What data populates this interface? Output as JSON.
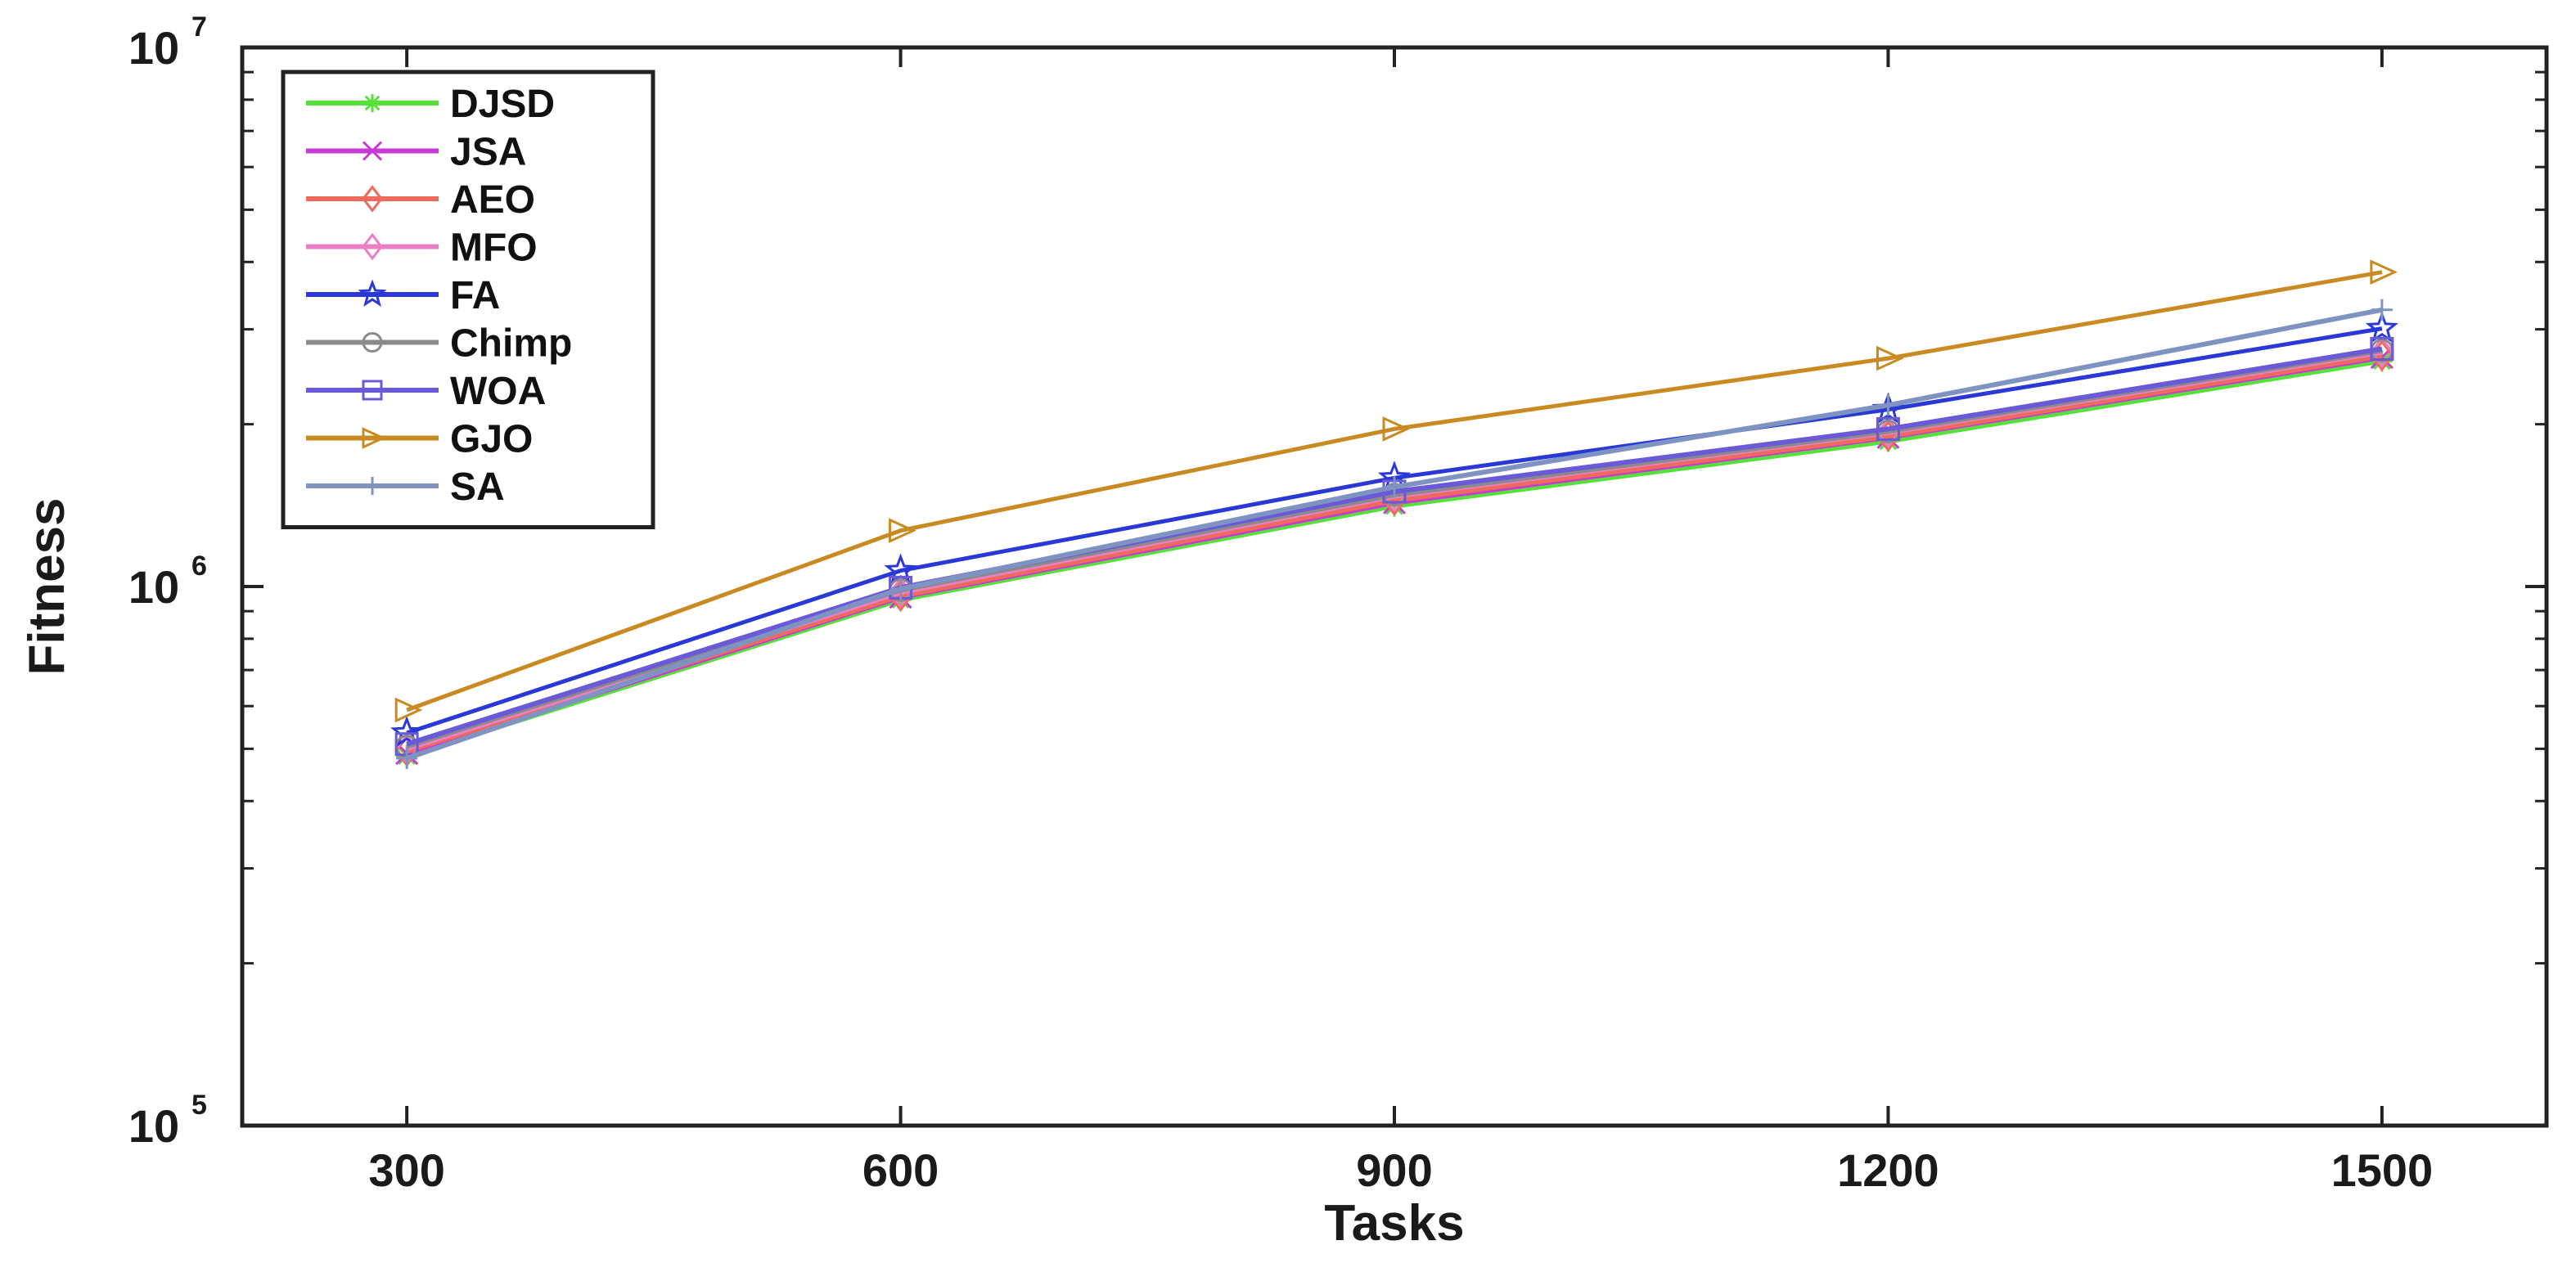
{
  "chart_data": {
    "type": "line",
    "title": "",
    "xlabel": "Tasks",
    "ylabel": "Fitness",
    "yscale": "log",
    "xlim": [
      200,
      1600
    ],
    "ylim": [
      100000,
      10000000
    ],
    "x": [
      300,
      600,
      900,
      1200,
      1500
    ],
    "xticks": [
      "300",
      "600",
      "900",
      "1200",
      "1500"
    ],
    "yticks": [
      {
        "value": 100000,
        "base": "10",
        "exp": "5"
      },
      {
        "value": 1000000,
        "base": "10",
        "exp": "6"
      },
      {
        "value": 10000000,
        "base": "10",
        "exp": "7"
      }
    ],
    "legend_position": "top-left",
    "series": [
      {
        "name": "DJSD",
        "color": "#55e03a",
        "marker": "asterisk",
        "values": [
          485000,
          945000,
          1410000,
          1860000,
          2620000
        ]
      },
      {
        "name": "JSA",
        "color": "#c83ad6",
        "marker": "x",
        "values": [
          490000,
          955000,
          1430000,
          1890000,
          2660000
        ]
      },
      {
        "name": "AEO",
        "color": "#ee6a5c",
        "marker": "diamond",
        "values": [
          495000,
          960000,
          1445000,
          1900000,
          2680000
        ]
      },
      {
        "name": "MFO",
        "color": "#ec7ec4",
        "marker": "diamond",
        "values": [
          500000,
          975000,
          1470000,
          1930000,
          2720000
        ]
      },
      {
        "name": "FA",
        "color": "#2b38d8",
        "marker": "star",
        "values": [
          535000,
          1070000,
          1590000,
          2130000,
          3010000
        ]
      },
      {
        "name": "Chimp",
        "color": "#8a8a8a",
        "marker": "circle",
        "values": [
          505000,
          985000,
          1480000,
          1940000,
          2740000
        ]
      },
      {
        "name": "WOA",
        "color": "#6a5ad8",
        "marker": "square",
        "values": [
          510000,
          995000,
          1500000,
          1960000,
          2760000
        ]
      },
      {
        "name": "GJO",
        "color": "#c98a22",
        "marker": "triangle-right",
        "values": [
          590000,
          1270000,
          1960000,
          2650000,
          3830000
        ]
      },
      {
        "name": "SA",
        "color": "#7f93c3",
        "marker": "plus",
        "values": [
          480000,
          990000,
          1530000,
          2170000,
          3260000
        ]
      }
    ]
  }
}
